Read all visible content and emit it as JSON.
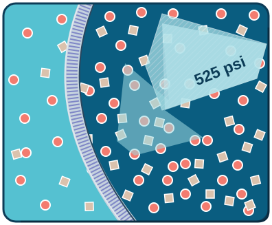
{
  "diagram": {
    "pressure_label": "525 psi",
    "colors": {
      "frame_outline": "#0d3c57",
      "left_region": "#55c1d1",
      "right_region": "#0a5d80",
      "arrow_fill": "#a9dfe6",
      "membrane_border": "#c6d3df",
      "membrane_stripe": "#7f87c6",
      "circle_particle": "#f37c70",
      "square_particle": "#dac2ad",
      "particle_outline": "#ffffff"
    },
    "icons": {
      "circle_particle": "salt-ion-circle-icon",
      "square_particle": "solute-particle-square-icon"
    }
  }
}
